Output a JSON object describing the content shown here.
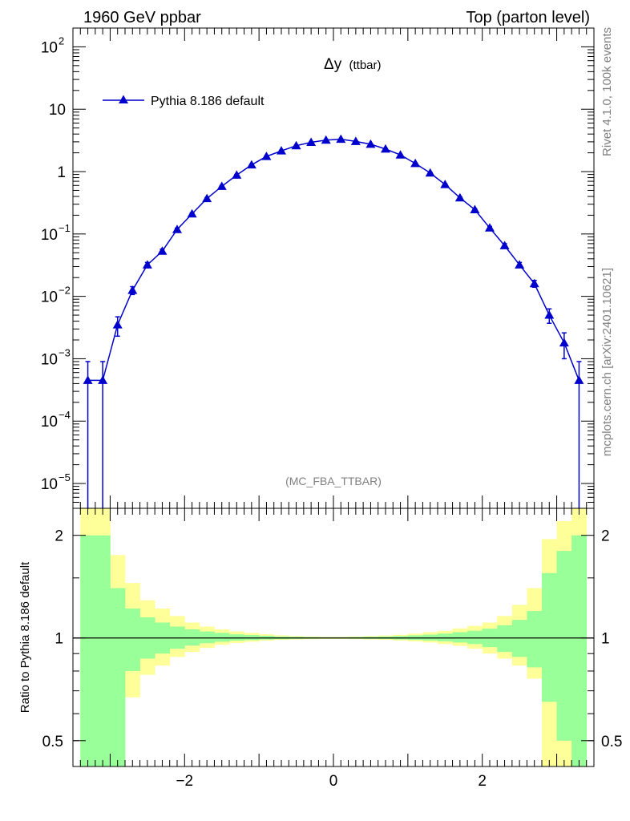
{
  "header": {
    "left": "1960 GeV ppbar",
    "right": "Top (parton level)"
  },
  "side_labels": {
    "rivet": "Rivet 4.1.0,  100k events",
    "mcplots": "mcplots.cern.ch [arXiv:2401.10621]"
  },
  "plot_title": {
    "main": "Δy",
    "sub": "(ttbar)"
  },
  "watermark": "(MC_FBA_TTBAR)",
  "legend": {
    "label": "Pythia 8.186 default"
  },
  "ratio_ylabel": "Ratio to Pythia 8.186 default",
  "colors": {
    "series": "#0000cc",
    "band_inner": "#99ff99",
    "band_outer": "#ffff99"
  },
  "chart_data": [
    {
      "type": "line",
      "title": "Δy (ttbar)",
      "xlabel": "",
      "ylabel": "",
      "yscale": "log",
      "xlim": [
        -3.5,
        3.5
      ],
      "ylim": [
        4e-06,
        200
      ],
      "y_ticks": [
        {
          "v": 100,
          "label": "10",
          "exp": "2"
        },
        {
          "v": 10,
          "label": "10",
          "exp": ""
        },
        {
          "v": 1,
          "label": "1",
          "exp": ""
        },
        {
          "v": 0.1,
          "label": "10",
          "exp": "−1"
        },
        {
          "v": 0.01,
          "label": "10",
          "exp": "−2"
        },
        {
          "v": 0.001,
          "label": "10",
          "exp": "−3"
        },
        {
          "v": 0.0001,
          "label": "10",
          "exp": "−4"
        },
        {
          "v": 1e-05,
          "label": "10",
          "exp": "−5"
        }
      ],
      "series": [
        {
          "name": "Pythia 8.186 default",
          "x": [
            -3.3,
            -3.1,
            -2.9,
            -2.7,
            -2.5,
            -2.3,
            -2.1,
            -1.9,
            -1.7,
            -1.5,
            -1.3,
            -1.1,
            -0.9,
            -0.7,
            -0.5,
            -0.3,
            -0.1,
            0.1,
            0.3,
            0.5,
            0.7,
            0.9,
            1.1,
            1.3,
            1.5,
            1.7,
            1.9,
            2.1,
            2.3,
            2.5,
            2.7,
            2.9,
            3.1,
            3.3
          ],
          "y": [
            0.00045,
            0.00045,
            0.0035,
            0.0125,
            0.032,
            0.053,
            0.118,
            0.21,
            0.37,
            0.58,
            0.88,
            1.28,
            1.75,
            2.15,
            2.6,
            2.95,
            3.2,
            3.3,
            3.05,
            2.75,
            2.3,
            1.85,
            1.35,
            0.95,
            0.62,
            0.38,
            0.245,
            0.125,
            0.065,
            0.032,
            0.016,
            0.005,
            0.0018,
            0.00045
          ],
          "err_lo": [
            0.00045,
            0.00045,
            0.0012,
            0.0018,
            0.003,
            0.004,
            0.006,
            0.008,
            0.011,
            0.015,
            0.02,
            0.025,
            0.03,
            0.033,
            0.036,
            0.038,
            0.04,
            0.04,
            0.039,
            0.037,
            0.034,
            0.031,
            0.026,
            0.021,
            0.016,
            0.012,
            0.009,
            0.007,
            0.005,
            0.003,
            0.002,
            0.0013,
            0.0008,
            0.00045
          ],
          "err_hi": [
            0.00045,
            0.00045,
            0.0012,
            0.0018,
            0.003,
            0.004,
            0.006,
            0.008,
            0.011,
            0.015,
            0.02,
            0.025,
            0.03,
            0.033,
            0.036,
            0.038,
            0.04,
            0.04,
            0.039,
            0.037,
            0.034,
            0.031,
            0.026,
            0.021,
            0.016,
            0.012,
            0.009,
            0.007,
            0.005,
            0.003,
            0.002,
            0.0013,
            0.0008,
            0.00045
          ]
        }
      ]
    },
    {
      "type": "area",
      "title": "",
      "xlabel": "",
      "ylabel": "Ratio to Pythia 8.186 default",
      "yscale": "log",
      "xlim": [
        -3.5,
        3.5
      ],
      "ylim": [
        0.42,
        2.4
      ],
      "y_ticks": [
        {
          "v": 0.5,
          "label": "0.5"
        },
        {
          "v": 1,
          "label": "1"
        },
        {
          "v": 2,
          "label": "2"
        }
      ],
      "x_ticks": [
        {
          "v": -2,
          "label": "−2"
        },
        {
          "v": 0,
          "label": "0"
        },
        {
          "v": 2,
          "label": "2"
        }
      ],
      "reference_line": 1,
      "bins": [
        -3.4,
        -3.2,
        -3.0,
        -2.8,
        -2.6,
        -2.4,
        -2.2,
        -2.0,
        -1.8,
        -1.6,
        -1.4,
        -1.2,
        -1.0,
        -0.8,
        -0.6,
        -0.4,
        -0.2,
        0.0,
        0.2,
        0.4,
        0.6,
        0.8,
        1.0,
        1.2,
        1.4,
        1.6,
        1.8,
        2.0,
        2.2,
        2.4,
        2.6,
        2.8,
        3.0,
        3.2,
        3.4
      ],
      "inner_band": {
        "lo": [
          0.4,
          0.4,
          0.4,
          0.8,
          0.87,
          0.9,
          0.93,
          0.95,
          0.965,
          0.975,
          0.982,
          0.986,
          0.99,
          0.992,
          0.994,
          0.995,
          0.996,
          0.996,
          0.995,
          0.994,
          0.993,
          0.99,
          0.987,
          0.983,
          0.978,
          0.97,
          0.96,
          0.94,
          0.91,
          0.88,
          0.82,
          0.65,
          0.5,
          0.4
        ],
        "hi": [
          2.0,
          2.0,
          1.4,
          1.22,
          1.15,
          1.11,
          1.08,
          1.06,
          1.045,
          1.035,
          1.025,
          1.02,
          1.015,
          1.01,
          1.008,
          1.006,
          1.005,
          1.005,
          1.006,
          1.008,
          1.01,
          1.013,
          1.018,
          1.023,
          1.03,
          1.04,
          1.05,
          1.065,
          1.09,
          1.13,
          1.2,
          1.55,
          1.8,
          2.0
        ]
      },
      "outer_band": {
        "lo": [
          0.4,
          0.4,
          0.4,
          0.67,
          0.78,
          0.83,
          0.88,
          0.91,
          0.935,
          0.955,
          0.967,
          0.975,
          0.982,
          0.987,
          0.99,
          0.992,
          0.993,
          0.993,
          0.992,
          0.99,
          0.988,
          0.983,
          0.977,
          0.97,
          0.96,
          0.948,
          0.93,
          0.9,
          0.87,
          0.83,
          0.76,
          0.4,
          0.4,
          0.4
        ],
        "hi": [
          2.4,
          2.4,
          1.75,
          1.45,
          1.29,
          1.22,
          1.16,
          1.11,
          1.08,
          1.06,
          1.045,
          1.035,
          1.025,
          1.018,
          1.013,
          1.01,
          1.008,
          1.008,
          1.01,
          1.013,
          1.017,
          1.022,
          1.03,
          1.04,
          1.05,
          1.067,
          1.085,
          1.11,
          1.16,
          1.25,
          1.4,
          1.95,
          2.2,
          2.4
        ]
      }
    }
  ]
}
